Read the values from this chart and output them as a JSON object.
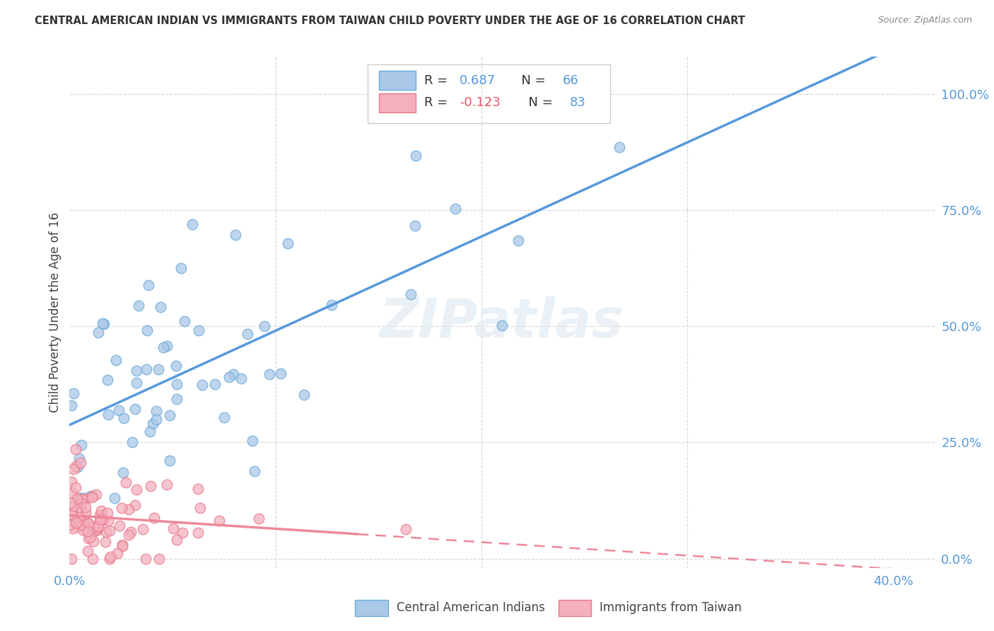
{
  "title": "CENTRAL AMERICAN INDIAN VS IMMIGRANTS FROM TAIWAN CHILD POVERTY UNDER THE AGE OF 16 CORRELATION CHART",
  "source": "Source: ZipAtlas.com",
  "ylabel": "Child Poverty Under the Age of 16",
  "ytick_labels": [
    "0.0%",
    "25.0%",
    "50.0%",
    "75.0%",
    "100.0%"
  ],
  "ytick_values": [
    0.0,
    0.25,
    0.5,
    0.75,
    1.0
  ],
  "xtick_labels": [
    "0.0%",
    "",
    "",
    "",
    "40.0%"
  ],
  "xtick_values": [
    0.0,
    0.1,
    0.2,
    0.3,
    0.4
  ],
  "blue_R": 0.687,
  "blue_N": 66,
  "pink_R": -0.123,
  "pink_N": 83,
  "blue_color": "#aac8e8",
  "pink_color": "#f4b0be",
  "blue_edge_color": "#6aaad8",
  "pink_edge_color": "#e87888",
  "blue_line_color": "#5599dd",
  "pink_line_color": "#ee8899",
  "legend1": "Central American Indians",
  "legend2": "Immigrants from Taiwan",
  "watermark": "ZIPatlas",
  "xlim": [
    0.0,
    0.42
  ],
  "ylim": [
    -0.02,
    1.08
  ],
  "background_color": "#ffffff",
  "grid_color": "#cccccc"
}
